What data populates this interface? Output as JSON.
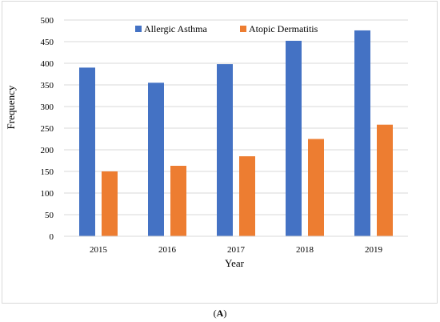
{
  "chart_data": {
    "type": "bar",
    "categories": [
      "2015",
      "2016",
      "2017",
      "2018",
      "2019"
    ],
    "series": [
      {
        "name": "Allergic Asthma",
        "color": "#4472c4",
        "values": [
          390,
          355,
          398,
          452,
          476
        ]
      },
      {
        "name": "Atopic Dermatitis",
        "color": "#ed7d31",
        "values": [
          150,
          163,
          185,
          225,
          258
        ]
      }
    ],
    "xlabel": "Year",
    "ylabel": "Frequency",
    "ylim": [
      0,
      500
    ],
    "yticks": [
      0,
      50,
      100,
      150,
      200,
      250,
      300,
      350,
      400,
      450,
      500
    ],
    "grid": true,
    "legend_position": "top"
  },
  "caption": {
    "label": "A"
  }
}
